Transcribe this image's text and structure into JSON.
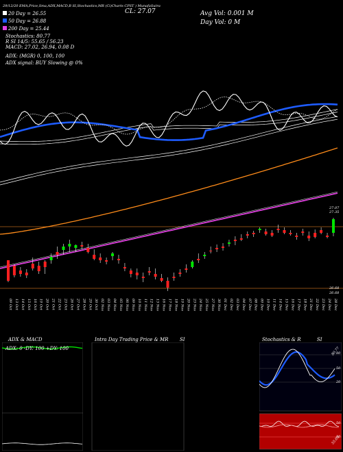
{
  "header": {
    "top_line": "29/12/20  EMA,Price,Sma,ADX,MACD,B  SI,Stochastics,MR  (Ci)Charts CPST  ) MunafaSutra",
    "close_label": "CL: 27.07",
    "avg_vol": "Avg Vol: 0.001 M",
    "day_vol": "Day Vol: 0   M",
    "ma20": "20  Day = 26.55",
    "ma50": "50  Day = 26.88",
    "ma200": "200  Day = 25.44",
    "stoch": "Stochastics: 80.77",
    "rsi": "R          SI 14/5: 55.65 / 56.23",
    "macd": "MACD: 27.02, 26.94, 0.08  D",
    "adx": "ADX:                 (MGR) 0,  100,  100",
    "adx_signal": "ADX  signal:                           BUY Slowing @ 0%",
    "price_hi": "27.07",
    "price_hi2": "27.35",
    "price_lo": "26.68",
    "price_lo2": "26.68"
  },
  "colors": {
    "up": "#00e600",
    "down": "#ff2020",
    "ema_blue": "#1e5cff",
    "orange": "#ff8c1a",
    "magenta": "#e040e0",
    "white": "#ffffff",
    "hline": "#b5651d"
  },
  "chart_data": {
    "type": "candlestick",
    "dates": [
      "09 Oct",
      "13 Oct",
      "14 Oct",
      "15 Oct",
      "16 Oct",
      "19 Oct",
      "20 Oct",
      "21 Oct",
      "22 Oct",
      "23 Oct",
      "26 Oct",
      "27 Oct",
      "28 Oct",
      "29 Oct",
      "30 Oct",
      "02 Nov",
      "03 Nov",
      "04 Nov",
      "05 Nov",
      "06 Nov",
      "09 Nov",
      "10 Nov",
      "11 Nov",
      "12 Nov",
      "13 Nov",
      "16 Nov",
      "17 Nov",
      "18 Nov",
      "19 Nov",
      "20 Nov",
      "23 Nov",
      "24 Nov",
      "25 Nov",
      "27 Nov",
      "30 Nov",
      "01 Dec",
      "02 Dec",
      "03 Dec",
      "04 Dec",
      "07 Dec",
      "08 Dec",
      "09 Dec",
      "10 Dec",
      "11 Dec",
      "14 Dec",
      "15 Dec",
      "16 Dec",
      "17 Dec",
      "18 Dec",
      "21 Dec",
      "22 Dec",
      "23 Dec",
      "24 Dec",
      "28 Dec"
    ],
    "candles": [
      [
        380,
        385,
        412,
        410
      ],
      [
        388,
        386,
        405,
        402
      ],
      [
        395,
        390,
        404,
        400
      ],
      [
        398,
        393,
        406,
        402
      ],
      [
        385,
        376,
        395,
        392
      ],
      [
        388,
        382,
        400,
        396
      ],
      [
        382,
        380,
        400,
        390
      ],
      [
        380,
        370,
        385,
        375
      ],
      [
        368,
        360,
        378,
        372
      ],
      [
        365,
        356,
        372,
        360
      ],
      [
        360,
        350,
        368,
        356
      ],
      [
        362,
        357,
        368,
        358
      ],
      [
        358,
        353,
        364,
        360
      ],
      [
        362,
        356,
        370,
        368
      ],
      [
        372,
        364,
        380,
        378
      ],
      [
        376,
        370,
        384,
        380
      ],
      [
        380,
        376,
        386,
        382
      ],
      [
        374,
        368,
        380,
        370
      ],
      [
        378,
        372,
        385,
        380
      ],
      [
        390,
        384,
        396,
        392
      ],
      [
        395,
        392,
        405,
        400
      ],
      [
        398,
        392,
        408,
        402
      ],
      [
        404,
        398,
        412,
        406
      ],
      [
        396,
        390,
        402,
        398
      ],
      [
        400,
        392,
        408,
        404
      ],
      [
        406,
        400,
        412,
        410
      ],
      [
        410,
        405,
        425,
        420
      ],
      [
        404,
        398,
        410,
        406
      ],
      [
        398,
        393,
        404,
        400
      ],
      [
        392,
        386,
        398,
        394
      ],
      [
        390,
        380,
        392,
        382
      ],
      [
        378,
        370,
        384,
        380
      ],
      [
        374,
        368,
        378,
        372
      ],
      [
        366,
        360,
        370,
        366
      ],
      [
        362,
        357,
        368,
        364
      ],
      [
        360,
        355,
        366,
        362
      ],
      [
        356,
        350,
        360,
        354
      ],
      [
        350,
        345,
        358,
        352
      ],
      [
        348,
        342,
        352,
        350
      ],
      [
        342,
        338,
        348,
        344
      ],
      [
        340,
        337,
        346,
        342
      ],
      [
        336,
        332,
        340,
        334
      ],
      [
        338,
        334,
        344,
        342
      ],
      [
        340,
        336,
        346,
        344
      ],
      [
        334,
        328,
        340,
        336
      ],
      [
        336,
        332,
        342,
        340
      ],
      [
        340,
        336,
        344,
        342
      ],
      [
        344,
        340,
        350,
        346
      ],
      [
        338,
        334,
        344,
        340
      ],
      [
        344,
        338,
        352,
        348
      ],
      [
        340,
        335,
        348,
        346
      ],
      [
        336,
        332,
        342,
        340
      ],
      [
        344,
        340,
        348,
        346
      ],
      [
        340,
        318,
        345,
        320
      ]
    ],
    "macd_panel_title": "ADX  & MACD",
    "macd_values": "ADX: 0  -DY: 100  +DY: 100",
    "mr_panel_title": "Intra  Day Trading Price  & MR",
    "mr_panel_si": "SI",
    "stoch_panel_title": "Stochastics & R",
    "stoch_panel_si": "SI",
    "stoch_ticks": [
      "80",
      "50",
      "20"
    ],
    "rsi_ticks": [
      "50",
      "20"
    ],
    "stoch_k_label": "80.77",
    "rsi_label": "55.65"
  }
}
